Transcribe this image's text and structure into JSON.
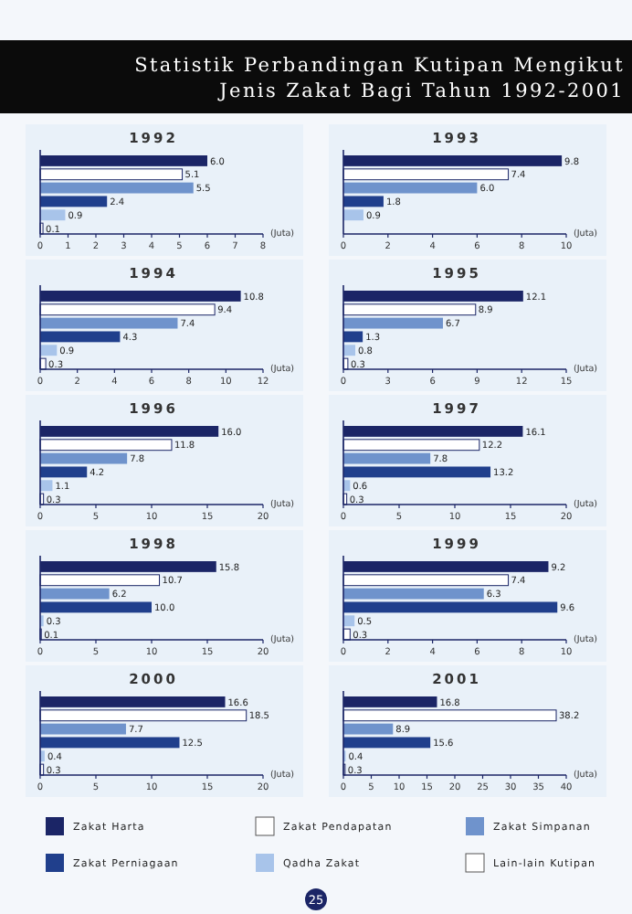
{
  "chart_data": [
    {
      "type": "other",
      "title": "Statistik Perbandingan Kutipan Mengikut Jenis Zakat Bagi Tahun 1992-2001",
      "annotations": [
        "25"
      ]
    },
    {
      "type": "bar",
      "orientation": "horizontal",
      "title": "1992",
      "xlabel": "(Juta)",
      "categories": [
        null
      ],
      "data_labels": true,
      "xlim": [
        0,
        8
      ],
      "xticks": [
        0,
        1,
        2,
        3,
        4,
        5,
        6,
        7,
        8
      ],
      "series": [
        {
          "color": "#1b2566",
          "values": [
            6.0
          ],
          "value_labels": [
            "6.0"
          ]
        },
        {
          "color": "#ffffff",
          "values": [
            5.1
          ]
        },
        {
          "color": "#6f93cc",
          "values": [
            5.5
          ]
        },
        {
          "color": "#203f8c",
          "values": [
            2.4
          ]
        },
        {
          "color": "#a8c4ea",
          "values": [
            0.9
          ]
        },
        {
          "color": "#ffffff",
          "values": [
            0.1
          ]
        }
      ]
    },
    {
      "type": "bar",
      "orientation": "horizontal",
      "title": "1993",
      "xlabel": "(Juta)",
      "categories": [
        null
      ],
      "data_labels": true,
      "xlim": [
        0,
        10
      ],
      "xticks": [
        0,
        2,
        4,
        6,
        8,
        10
      ],
      "series": [
        {
          "color": "#1b2566",
          "values": [
            9.8
          ]
        },
        {
          "color": "#ffffff",
          "values": [
            7.4
          ]
        },
        {
          "color": "#6f93cc",
          "values": [
            6.0
          ],
          "value_labels": [
            "6.0"
          ]
        },
        {
          "color": "#203f8c",
          "values": [
            1.8
          ]
        },
        {
          "color": "#a8c4ea",
          "values": [
            0.9
          ]
        },
        {
          "values": [
            null
          ]
        }
      ]
    },
    {
      "type": "bar",
      "orientation": "horizontal",
      "title": "1994",
      "xlabel": "(Juta)",
      "categories": [
        null
      ],
      "data_labels": true,
      "xlim": [
        0,
        12
      ],
      "xticks": [
        0,
        2,
        4,
        6,
        8,
        10,
        12
      ],
      "series": [
        {
          "color": "#1b2566",
          "values": [
            10.8
          ]
        },
        {
          "color": "#ffffff",
          "values": [
            9.4
          ]
        },
        {
          "color": "#6f93cc",
          "values": [
            7.4
          ]
        },
        {
          "color": "#203f8c",
          "values": [
            4.3
          ]
        },
        {
          "color": "#a8c4ea",
          "values": [
            0.9
          ]
        },
        {
          "color": "#ffffff",
          "values": [
            0.3
          ]
        }
      ]
    },
    {
      "type": "bar",
      "orientation": "horizontal",
      "title": "1995",
      "xlabel": "(Juta)",
      "categories": [
        null
      ],
      "data_labels": true,
      "xlim": [
        0,
        15
      ],
      "xticks": [
        0,
        3,
        6,
        9,
        12,
        15
      ],
      "series": [
        {
          "color": "#1b2566",
          "values": [
            12.1
          ]
        },
        {
          "color": "#ffffff",
          "values": [
            8.9
          ]
        },
        {
          "color": "#6f93cc",
          "values": [
            6.7
          ]
        },
        {
          "color": "#203f8c",
          "values": [
            1.3
          ]
        },
        {
          "color": "#a8c4ea",
          "values": [
            0.8
          ]
        },
        {
          "color": "#ffffff",
          "values": [
            0.3
          ]
        }
      ]
    },
    {
      "type": "bar",
      "orientation": "horizontal",
      "title": "1996",
      "xlabel": "(Juta)",
      "categories": [
        null
      ],
      "data_labels": true,
      "xlim": [
        0,
        20
      ],
      "xticks": [
        0,
        5,
        10,
        15,
        20
      ],
      "series": [
        {
          "color": "#1b2566",
          "values": [
            16.0
          ],
          "value_labels": [
            "16.0"
          ]
        },
        {
          "color": "#ffffff",
          "values": [
            11.8
          ]
        },
        {
          "color": "#6f93cc",
          "values": [
            7.8
          ]
        },
        {
          "color": "#203f8c",
          "values": [
            4.2
          ]
        },
        {
          "color": "#a8c4ea",
          "values": [
            1.1
          ]
        },
        {
          "color": "#ffffff",
          "values": [
            0.3
          ]
        }
      ]
    },
    {
      "type": "bar",
      "orientation": "horizontal",
      "title": "1997",
      "xlabel": "(Juta)",
      "categories": [
        null
      ],
      "data_labels": true,
      "xlim": [
        0,
        20
      ],
      "xticks": [
        0,
        5,
        10,
        15,
        20
      ],
      "series": [
        {
          "color": "#1b2566",
          "values": [
            16.1
          ]
        },
        {
          "color": "#ffffff",
          "values": [
            12.2
          ]
        },
        {
          "color": "#6f93cc",
          "values": [
            7.8
          ]
        },
        {
          "color": "#203f8c",
          "values": [
            13.2
          ]
        },
        {
          "color": "#a8c4ea",
          "values": [
            0.6
          ]
        },
        {
          "color": "#ffffff",
          "values": [
            0.3
          ]
        }
      ]
    },
    {
      "type": "bar",
      "orientation": "horizontal",
      "title": "1998",
      "xlabel": "(Juta)",
      "categories": [
        null
      ],
      "data_labels": true,
      "xlim": [
        0,
        20
      ],
      "xticks": [
        0,
        5,
        10,
        15,
        20
      ],
      "series": [
        {
          "color": "#1b2566",
          "values": [
            15.8
          ]
        },
        {
          "color": "#ffffff",
          "values": [
            10.7
          ]
        },
        {
          "color": "#6f93cc",
          "values": [
            6.2
          ]
        },
        {
          "color": "#203f8c",
          "values": [
            10.0
          ],
          "value_labels": [
            "10.0"
          ]
        },
        {
          "color": "#a8c4ea",
          "values": [
            0.3
          ]
        },
        {
          "color": "#ffffff",
          "values": [
            0.1
          ]
        }
      ]
    },
    {
      "type": "bar",
      "orientation": "horizontal",
      "title": "1999",
      "xlabel": "(Juta)",
      "categories": [
        null
      ],
      "data_labels": true,
      "xlim": [
        0,
        10
      ],
      "xticks": [
        0,
        2,
        4,
        6,
        8,
        10
      ],
      "series": [
        {
          "color": "#1b2566",
          "values": [
            9.2
          ]
        },
        {
          "color": "#ffffff",
          "values": [
            7.4
          ]
        },
        {
          "color": "#6f93cc",
          "values": [
            6.3
          ]
        },
        {
          "color": "#203f8c",
          "values": [
            9.6
          ]
        },
        {
          "color": "#a8c4ea",
          "values": [
            0.5
          ]
        },
        {
          "color": "#ffffff",
          "values": [
            0.3
          ]
        }
      ]
    },
    {
      "type": "bar",
      "orientation": "horizontal",
      "title": "2000",
      "xlabel": "(Juta)",
      "categories": [
        null
      ],
      "data_labels": true,
      "xlim": [
        0,
        20
      ],
      "xticks": [
        0,
        5,
        10,
        15,
        20
      ],
      "series": [
        {
          "color": "#1b2566",
          "values": [
            16.6
          ]
        },
        {
          "color": "#ffffff",
          "values": [
            18.5
          ]
        },
        {
          "color": "#6f93cc",
          "values": [
            7.7
          ]
        },
        {
          "color": "#203f8c",
          "values": [
            12.5
          ]
        },
        {
          "color": "#a8c4ea",
          "values": [
            0.4
          ]
        },
        {
          "color": "#ffffff",
          "values": [
            0.3
          ]
        }
      ]
    },
    {
      "type": "bar",
      "orientation": "horizontal",
      "title": "2001",
      "xlabel": "(Juta)",
      "categories": [
        null
      ],
      "data_labels": true,
      "xlim": [
        0,
        40
      ],
      "xticks": [
        0,
        5,
        10,
        15,
        20,
        25,
        30,
        35,
        40
      ],
      "legend": "bottom",
      "series": [
        {
          "name": "Zakat Harta",
          "color": "#1b2566",
          "values": [
            16.8
          ]
        },
        {
          "name": "Zakat Pendapatan",
          "color": "#ffffff",
          "values": [
            38.2
          ]
        },
        {
          "name": "Zakat Simpanan",
          "color": "#6f93cc",
          "values": [
            8.9
          ]
        },
        {
          "name": "Zakat Perniagaan",
          "color": "#203f8c",
          "values": [
            15.6
          ]
        },
        {
          "name": "Qadha Zakat",
          "color": "#a8c4ea",
          "values": [
            0.4
          ]
        },
        {
          "name": "Lain-lain Kutipan",
          "color": "#ffffff",
          "values": [
            0.3
          ]
        }
      ]
    }
  ]
}
